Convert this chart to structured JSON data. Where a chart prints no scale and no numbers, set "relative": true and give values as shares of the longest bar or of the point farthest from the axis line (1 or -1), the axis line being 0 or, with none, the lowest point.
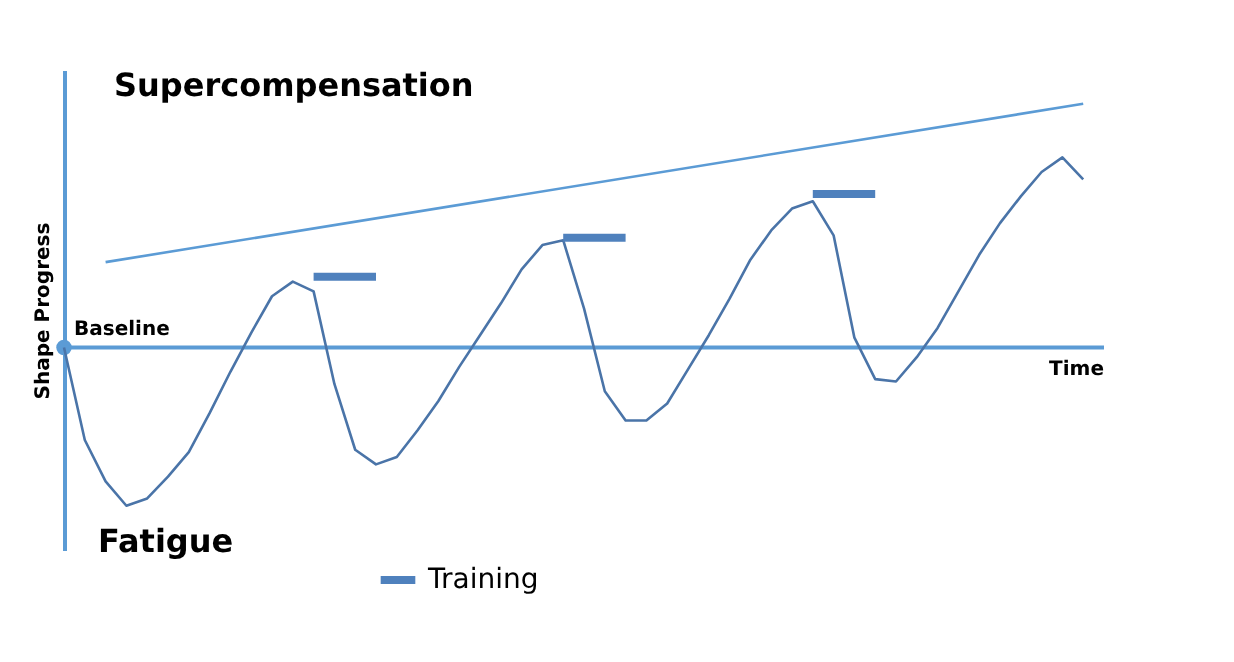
{
  "chart_data": {
    "type": "line",
    "relative": true,
    "ylabel": "Shape Progress",
    "xlabel": "Time",
    "tick_labels": false,
    "grid": false,
    "legend": "bottom",
    "marker": "none",
    "categories": [
      null,
      null,
      null,
      null,
      null,
      null,
      null,
      null,
      null,
      null,
      null,
      null,
      null,
      null,
      null,
      null,
      null,
      null,
      null,
      null,
      null,
      null,
      null,
      null,
      null,
      null,
      null,
      null,
      null,
      null,
      null,
      null,
      null,
      null,
      null,
      null,
      null,
      null,
      null,
      null,
      null,
      null,
      null,
      null,
      null,
      null,
      null,
      null,
      null,
      null
    ],
    "annotations": [
      "Supercompensation",
      "Fatigue",
      "Baseline"
    ],
    "ref_lines": [
      {
        "axis": "y",
        "value": 0,
        "color": "#5b9bd5"
      }
    ],
    "series": [
      {
        "color": "#4a74a8",
        "values": [
          0,
          -0.38,
          -0.55,
          -0.65,
          -0.62,
          -0.53,
          -0.43,
          -0.27,
          -0.1,
          0.06,
          0.21,
          0.27,
          0.23,
          -0.15,
          -0.42,
          -0.48,
          -0.45,
          -0.34,
          -0.22,
          -0.08,
          0.05,
          0.18,
          0.32,
          0.42,
          0.44,
          0.16,
          -0.18,
          -0.3,
          -0.3,
          -0.23,
          -0.09,
          0.05,
          0.2,
          0.36,
          0.48,
          0.57,
          0.6,
          0.46,
          0.04,
          -0.13,
          -0.14,
          -0.04,
          0.08,
          0.23,
          0.38,
          0.51,
          0.62,
          0.72,
          0.78,
          0.69
        ]
      },
      {
        "color": "#5b9bd5",
        "values": [
          null,
          null,
          0.35,
          null,
          null,
          null,
          null,
          null,
          null,
          null,
          null,
          null,
          null,
          null,
          null,
          null,
          null,
          null,
          null,
          null,
          null,
          null,
          null,
          null,
          null,
          null,
          null,
          null,
          null,
          null,
          null,
          null,
          null,
          null,
          null,
          null,
          null,
          null,
          null,
          null,
          null,
          null,
          null,
          null,
          null,
          null,
          null,
          null,
          null,
          1
        ]
      },
      {
        "name": "Training",
        "color": "#4f81bd",
        "values": [
          null,
          null,
          null,
          null,
          null,
          null,
          null,
          null,
          null,
          null,
          null,
          null,
          0.29,
          0.29,
          0.29,
          0.29,
          null,
          null,
          null,
          null,
          null,
          null,
          null,
          null,
          0.45,
          0.45,
          0.45,
          0.45,
          null,
          null,
          null,
          null,
          null,
          null,
          null,
          null,
          0.63,
          0.63,
          0.63,
          0.63,
          null,
          null,
          null,
          null,
          null,
          null,
          null,
          null,
          null,
          null
        ]
      }
    ]
  }
}
